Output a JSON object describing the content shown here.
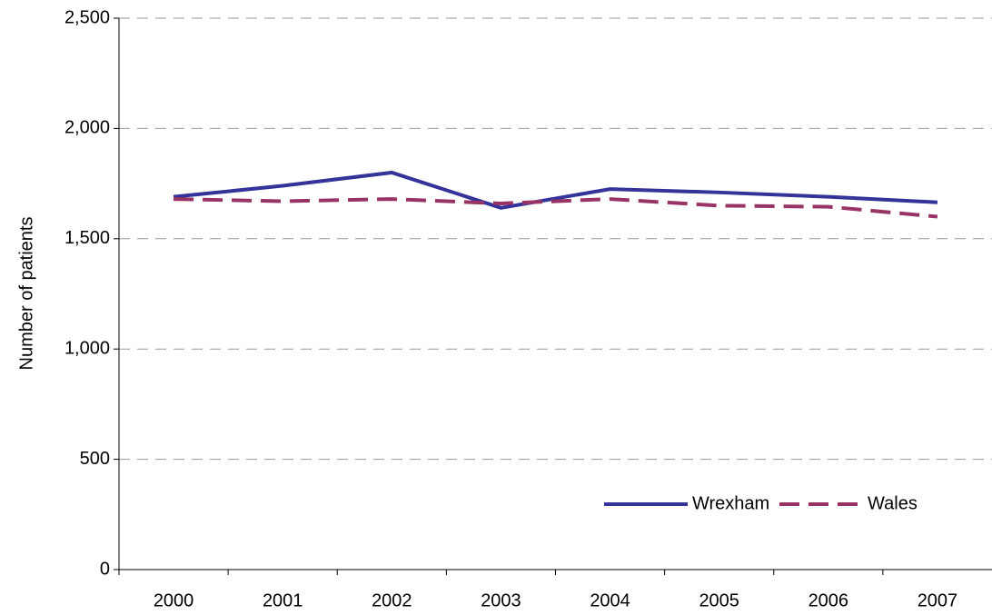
{
  "chart_data": {
    "type": "line",
    "y_label": "Number of patients",
    "categories": [
      "2000",
      "2001",
      "2002",
      "2003",
      "2004",
      "2005",
      "2006",
      "2007"
    ],
    "series": [
      {
        "name": "Wrexham",
        "color": "#333399",
        "dash": false,
        "values": [
          1690,
          1740,
          1800,
          1640,
          1725,
          1710,
          1690,
          1665
        ]
      },
      {
        "name": "Wales",
        "color": "#993366",
        "dash": true,
        "values": [
          1680,
          1670,
          1680,
          1660,
          1680,
          1650,
          1645,
          1600
        ]
      }
    ],
    "ylim": [
      0,
      2500
    ],
    "yticks": [
      0,
      500,
      {
        "value": 1000,
        "label": "1,000"
      },
      {
        "value": 1500,
        "label": "1,500"
      },
      {
        "value": 2000,
        "label": "2,000"
      },
      {
        "value": 2500,
        "label": "2,500"
      }
    ],
    "grid": true,
    "legend": "bottom-right"
  }
}
